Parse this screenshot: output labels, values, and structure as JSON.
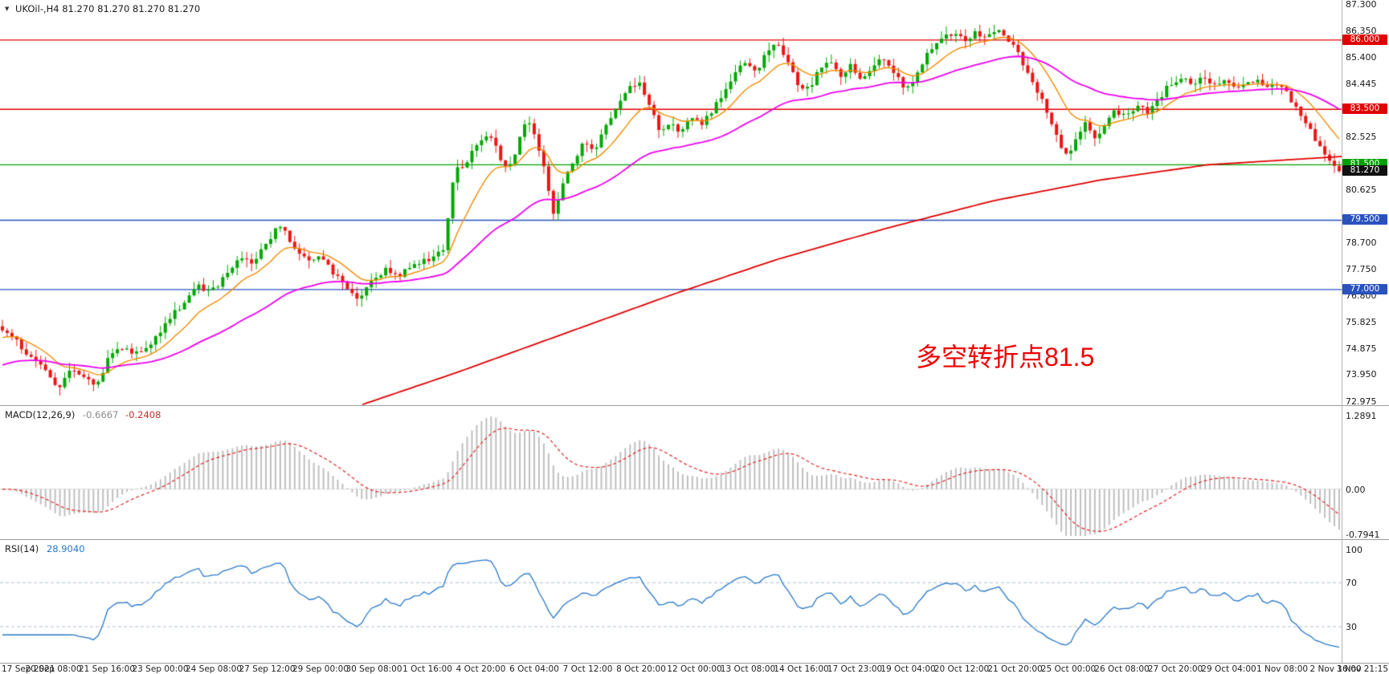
{
  "window": {
    "title": "UKOil-,H4",
    "bg": "#ffffff"
  },
  "symbol": {
    "dropdown_icon": "▼",
    "title": "UKOil-,H4 81.270 81.270 81.270 81.270"
  },
  "annotation": {
    "text": "多空转折点81.5",
    "color": "#f00000"
  },
  "chart_data": {
    "type": "candlestick",
    "symbol": "UKOil-",
    "timeframe": "H4",
    "current_ohlc": {
      "open": "81.270",
      "high": "81.270",
      "low": "81.270",
      "close": "81.270"
    },
    "current_price": {
      "value": 81.27,
      "label": "81.270",
      "badge_color": "#111111"
    },
    "ylim": [
      72.975,
      87.3
    ],
    "num_candles": 280,
    "colors": {
      "candle_up": "#00a800",
      "candle_down": "#ee1515",
      "background": "#ffffff"
    },
    "y_axis_ticks": [
      "87.300",
      "86.350",
      "85.400",
      "84.445",
      "82.525",
      "80.625",
      "78.700",
      "77.750",
      "76.800",
      "75.825",
      "74.875",
      "73.950",
      "72.975"
    ],
    "price_badges": [
      {
        "label": "86.000",
        "color": "#e00000"
      },
      {
        "label": "83.500",
        "color": "#e00000"
      },
      {
        "label": "81.500",
        "color": "#00a000"
      },
      {
        "label": "81.270",
        "color": "#111111"
      },
      {
        "label": "79.500",
        "color": "#2a52be"
      },
      {
        "label": "77.000",
        "color": "#2a52be"
      }
    ],
    "horizontal_lines": [
      {
        "value": 86.0,
        "color": "#e00000"
      },
      {
        "value": 83.5,
        "color": "#e00000"
      },
      {
        "value": 81.5,
        "color": "#00a000"
      },
      {
        "value": 79.5,
        "color": "#2a52be"
      },
      {
        "value": 77.0,
        "color": "#2a52be"
      }
    ],
    "moving_averages": [
      {
        "name": "fast-ma",
        "type": "ema",
        "period": 12,
        "color": "#f08c00"
      },
      {
        "name": "medium-ma",
        "type": "ema",
        "period": 45,
        "color": "#ee00ee"
      },
      {
        "name": "slow-ma",
        "type": "path",
        "color": "#e00000",
        "path": [
          [
            0.27,
            72.85
          ],
          [
            0.34,
            74.0
          ],
          [
            0.42,
            75.4
          ],
          [
            0.5,
            76.8
          ],
          [
            0.58,
            78.1
          ],
          [
            0.66,
            79.2
          ],
          [
            0.74,
            80.2
          ],
          [
            0.82,
            80.95
          ],
          [
            0.9,
            81.5
          ],
          [
            1.0,
            81.8
          ]
        ]
      }
    ],
    "price_waypoints": [
      [
        0.0,
        75.55
      ],
      [
        0.01,
        75.15
      ],
      [
        0.022,
        74.55
      ],
      [
        0.034,
        73.9
      ],
      [
        0.043,
        73.5
      ],
      [
        0.052,
        74.2
      ],
      [
        0.061,
        73.9
      ],
      [
        0.07,
        73.55
      ],
      [
        0.08,
        74.55
      ],
      [
        0.091,
        75.0
      ],
      [
        0.101,
        74.65
      ],
      [
        0.112,
        75.15
      ],
      [
        0.124,
        75.9
      ],
      [
        0.136,
        76.5
      ],
      [
        0.147,
        77.1
      ],
      [
        0.156,
        76.9
      ],
      [
        0.167,
        77.55
      ],
      [
        0.177,
        78.1
      ],
      [
        0.187,
        77.95
      ],
      [
        0.197,
        78.6
      ],
      [
        0.206,
        79.3
      ],
      [
        0.212,
        79.05
      ],
      [
        0.221,
        78.3
      ],
      [
        0.229,
        77.95
      ],
      [
        0.237,
        78.2
      ],
      [
        0.247,
        77.6
      ],
      [
        0.257,
        77.1
      ],
      [
        0.267,
        76.55
      ],
      [
        0.277,
        77.4
      ],
      [
        0.287,
        77.7
      ],
      [
        0.297,
        77.55
      ],
      [
        0.309,
        77.95
      ],
      [
        0.321,
        78.15
      ],
      [
        0.33,
        78.4
      ],
      [
        0.338,
        81.2
      ],
      [
        0.346,
        81.55
      ],
      [
        0.355,
        82.15
      ],
      [
        0.363,
        82.65
      ],
      [
        0.371,
        81.95
      ],
      [
        0.378,
        81.25
      ],
      [
        0.385,
        82.15
      ],
      [
        0.392,
        83.2
      ],
      [
        0.399,
        82.45
      ],
      [
        0.406,
        81.35
      ],
      [
        0.412,
        79.7
      ],
      [
        0.419,
        80.85
      ],
      [
        0.427,
        81.65
      ],
      [
        0.435,
        82.3
      ],
      [
        0.443,
        82.05
      ],
      [
        0.451,
        82.85
      ],
      [
        0.459,
        83.45
      ],
      [
        0.468,
        84.2
      ],
      [
        0.476,
        84.45
      ],
      [
        0.484,
        83.6
      ],
      [
        0.492,
        82.75
      ],
      [
        0.5,
        82.95
      ],
      [
        0.508,
        82.6
      ],
      [
        0.516,
        83.25
      ],
      [
        0.524,
        83.0
      ],
      [
        0.532,
        83.55
      ],
      [
        0.54,
        84.1
      ],
      [
        0.548,
        84.7
      ],
      [
        0.556,
        85.3
      ],
      [
        0.563,
        84.85
      ],
      [
        0.571,
        85.45
      ],
      [
        0.579,
        85.9
      ],
      [
        0.587,
        85.3
      ],
      [
        0.595,
        84.4
      ],
      [
        0.603,
        84.2
      ],
      [
        0.611,
        84.9
      ],
      [
        0.619,
        85.25
      ],
      [
        0.627,
        84.75
      ],
      [
        0.635,
        85.05
      ],
      [
        0.643,
        84.55
      ],
      [
        0.651,
        85.0
      ],
      [
        0.659,
        85.4
      ],
      [
        0.667,
        84.9
      ],
      [
        0.675,
        84.1
      ],
      [
        0.683,
        84.7
      ],
      [
        0.691,
        85.45
      ],
      [
        0.7,
        85.95
      ],
      [
        0.71,
        86.25
      ],
      [
        0.719,
        86.0
      ],
      [
        0.728,
        86.25
      ],
      [
        0.737,
        86.1
      ],
      [
        0.746,
        86.3
      ],
      [
        0.754,
        85.95
      ],
      [
        0.762,
        85.3
      ],
      [
        0.77,
        84.6
      ],
      [
        0.777,
        83.9
      ],
      [
        0.784,
        83.1
      ],
      [
        0.791,
        82.2
      ],
      [
        0.797,
        81.75
      ],
      [
        0.804,
        82.55
      ],
      [
        0.811,
        83.05
      ],
      [
        0.818,
        82.5
      ],
      [
        0.825,
        83.0
      ],
      [
        0.833,
        83.45
      ],
      [
        0.841,
        83.2
      ],
      [
        0.849,
        83.7
      ],
      [
        0.857,
        83.4
      ],
      [
        0.865,
        83.9
      ],
      [
        0.873,
        84.4
      ],
      [
        0.881,
        84.65
      ],
      [
        0.889,
        84.4
      ],
      [
        0.897,
        84.7
      ],
      [
        0.905,
        84.35
      ],
      [
        0.913,
        84.6
      ],
      [
        0.921,
        84.25
      ],
      [
        0.93,
        84.5
      ],
      [
        0.938,
        84.55
      ],
      [
        0.947,
        84.3
      ],
      [
        0.955,
        84.45
      ],
      [
        0.963,
        83.9
      ],
      [
        0.971,
        83.3
      ],
      [
        0.979,
        82.7
      ],
      [
        0.987,
        82.1
      ],
      [
        0.994,
        81.65
      ],
      [
        1.0,
        81.27
      ]
    ],
    "x_axis_labels": [
      "17 Sep 2021",
      "20 Sep 08:00",
      "21 Sep 16:00",
      "23 Sep 00:00",
      "24 Sep 08:00",
      "27 Sep 12:00",
      "29 Sep 00:00",
      "30 Sep 08:00",
      "1 Oct 16:00",
      "4 Oct 20:00",
      "6 Oct 04:00",
      "7 Oct 12:00",
      "8 Oct 20:00",
      "12 Oct 00:00",
      "13 Oct 08:00",
      "14 Oct 16:00",
      "17 Oct 23:00",
      "19 Oct 04:00",
      "20 Oct 12:00",
      "21 Oct 20:00",
      "25 Oct 00:00",
      "26 Oct 08:00",
      "27 Oct 20:00",
      "29 Oct 04:00",
      "1 Nov 08:00",
      "2 Nov 16:00",
      "3 Nov 21:15"
    ],
    "indicators": [
      {
        "name": "MACD",
        "label": "MACD(12,26,9)",
        "value_main": "-0.6667",
        "value_signal": "-0.2408",
        "fast_period": 12,
        "slow_period": 26,
        "signal_period": 9,
        "range": [
          -0.7941,
          1.2891
        ],
        "scale_labels": [
          {
            "label": "1.2891",
            "value": 1.2891
          },
          {
            "label": "0.00",
            "value": 0
          },
          {
            "label": "-0.7941",
            "value": -0.7941
          }
        ],
        "histogram_color": "#bfbfbf",
        "signal_color": "#e02020"
      },
      {
        "name": "RSI",
        "label": "RSI(14)",
        "value": "28.9040",
        "period": 14,
        "levels": [
          70,
          30
        ],
        "scale_labels": [
          {
            "label": "100",
            "value": 100
          },
          {
            "label": "70",
            "value": 70
          },
          {
            "label": "30",
            "value": 30
          }
        ],
        "line_color": "#2878c8",
        "level_color": "#b0bdd6"
      }
    ]
  }
}
